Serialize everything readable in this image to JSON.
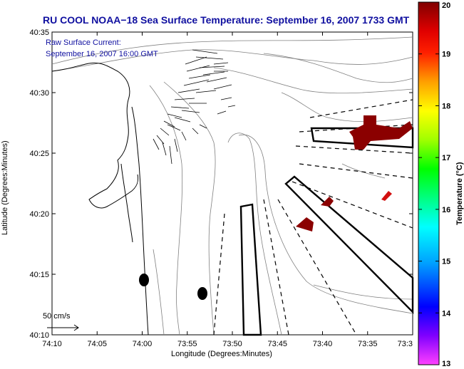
{
  "chart_data": {
    "type": "heatmap",
    "title": "RU COOL  NOAA−18  Sea Surface Temperature:  September 16, 2007 1733 GMT",
    "annotation_lines": [
      "Raw Surface Current:",
      "September 16, 2007 16:00 GMT"
    ],
    "scale_label": "50 cm/s",
    "xlabel": "Longitude (Degrees:Minutes)",
    "ylabel": "Latitude (Degrees:Minutes)",
    "x_ticks": [
      "74:10",
      "74:05",
      "74:00",
      "73:55",
      "73:50",
      "73:45",
      "73:40",
      "73:35",
      "73:3"
    ],
    "y_ticks": [
      "40:35",
      "40:30",
      "40:25",
      "40:20",
      "40:15",
      "40:10"
    ],
    "xlim_minutes_west": [
      10,
      -30
    ],
    "ylim_minutes_north": [
      10,
      35
    ],
    "colorbar": {
      "label": "Temperature (°C)",
      "range": [
        13,
        20
      ],
      "ticks": [
        "20",
        "19",
        "18",
        "17",
        "16",
        "15",
        "14",
        "13"
      ],
      "colors": [
        "#ff40ff",
        "#8000ff",
        "#0000ff",
        "#00a0ff",
        "#00ffff",
        "#00ff80",
        "#00ff00",
        "#a0ff00",
        "#ffff00",
        "#ffa000",
        "#ff4000",
        "#ff0000",
        "#800000"
      ]
    },
    "sst_patches_color": "#8b0000",
    "sst_patch_values_approx": [
      20,
      19.8,
      19.6,
      19.4
    ],
    "grid": false,
    "colors": {
      "title": "#1010a0",
      "coast": "#000000",
      "bathymetry": "#808080"
    }
  }
}
